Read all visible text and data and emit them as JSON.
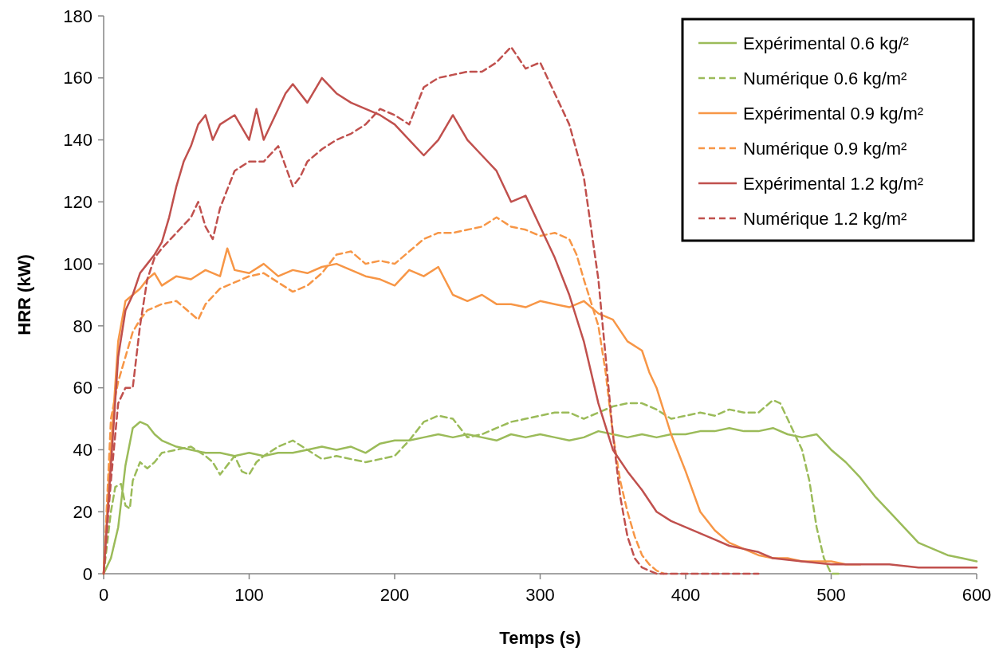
{
  "chart_data": {
    "type": "line",
    "xlabel": "Temps (s)",
    "ylabel": "HRR (kW)",
    "xlim": [
      0,
      600
    ],
    "ylim": [
      0,
      180
    ],
    "xticks": [
      0,
      100,
      200,
      300,
      400,
      500,
      600
    ],
    "yticks": [
      0,
      20,
      40,
      60,
      80,
      100,
      120,
      140,
      160,
      180
    ],
    "grid": false,
    "legend": "top right",
    "marker": "none",
    "series": [
      {
        "name": "Expérimental 0.6 kg/²",
        "color": "#9bbb59",
        "line_style": "solid",
        "x": [
          0,
          5,
          10,
          15,
          20,
          25,
          30,
          35,
          40,
          50,
          60,
          70,
          80,
          90,
          100,
          110,
          120,
          130,
          140,
          150,
          160,
          170,
          180,
          190,
          200,
          210,
          220,
          230,
          240,
          250,
          260,
          270,
          280,
          290,
          300,
          310,
          320,
          330,
          340,
          350,
          360,
          370,
          380,
          390,
          400,
          410,
          420,
          430,
          440,
          450,
          460,
          470,
          480,
          490,
          500,
          510,
          520,
          530,
          540,
          550,
          560,
          570,
          580,
          590,
          600
        ],
        "values": [
          0,
          5,
          15,
          35,
          47,
          49,
          48,
          45,
          43,
          41,
          40,
          39,
          39,
          38,
          39,
          38,
          39,
          39,
          40,
          41,
          40,
          41,
          39,
          42,
          43,
          43,
          44,
          45,
          44,
          45,
          44,
          43,
          45,
          44,
          45,
          44,
          43,
          44,
          46,
          45,
          44,
          45,
          44,
          45,
          45,
          46,
          46,
          47,
          46,
          46,
          47,
          45,
          44,
          45,
          40,
          36,
          31,
          25,
          20,
          15,
          10,
          8,
          6,
          5,
          4
        ]
      },
      {
        "name": "Numérique 0.6 kg/m²",
        "color": "#9bbb59",
        "line_style": "dashed",
        "x": [
          0,
          5,
          8,
          12,
          15,
          18,
          20,
          25,
          30,
          35,
          40,
          50,
          60,
          70,
          75,
          80,
          85,
          90,
          95,
          100,
          105,
          110,
          120,
          130,
          140,
          150,
          160,
          170,
          180,
          190,
          200,
          210,
          220,
          230,
          240,
          250,
          260,
          270,
          280,
          290,
          300,
          310,
          320,
          330,
          340,
          350,
          360,
          370,
          380,
          390,
          400,
          410,
          420,
          430,
          440,
          450,
          460,
          465,
          470,
          480,
          485,
          490,
          495,
          500,
          505
        ],
        "values": [
          0,
          20,
          28,
          29,
          22,
          21,
          30,
          36,
          34,
          36,
          39,
          40,
          41,
          38,
          36,
          32,
          35,
          38,
          33,
          32,
          36,
          38,
          41,
          43,
          40,
          37,
          38,
          37,
          36,
          37,
          38,
          43,
          49,
          51,
          50,
          44,
          45,
          47,
          49,
          50,
          51,
          52,
          52,
          50,
          52,
          54,
          55,
          55,
          53,
          50,
          51,
          52,
          51,
          53,
          52,
          52,
          56,
          55,
          50,
          40,
          30,
          15,
          5,
          0,
          0
        ]
      },
      {
        "name": "Expérimental 0.9 kg/m²",
        "color": "#f79646",
        "line_style": "solid",
        "x": [
          0,
          5,
          10,
          15,
          20,
          25,
          30,
          35,
          40,
          50,
          60,
          70,
          80,
          85,
          90,
          100,
          110,
          120,
          130,
          140,
          150,
          160,
          170,
          180,
          190,
          200,
          210,
          220,
          230,
          240,
          250,
          260,
          270,
          280,
          290,
          300,
          310,
          320,
          330,
          340,
          350,
          360,
          370,
          375,
          380,
          390,
          400,
          410,
          420,
          430,
          440,
          450,
          460,
          470,
          480,
          490,
          500,
          510,
          520
        ],
        "values": [
          0,
          40,
          75,
          88,
          90,
          92,
          95,
          97,
          93,
          96,
          95,
          98,
          96,
          105,
          98,
          97,
          100,
          96,
          98,
          97,
          99,
          100,
          98,
          96,
          95,
          93,
          98,
          96,
          99,
          90,
          88,
          90,
          87,
          87,
          86,
          88,
          87,
          86,
          88,
          84,
          82,
          75,
          72,
          65,
          60,
          45,
          33,
          20,
          14,
          10,
          8,
          6,
          5,
          5,
          4,
          4,
          4,
          3,
          3
        ]
      },
      {
        "name": "Numérique 0.9 kg/m²",
        "color": "#f79646",
        "line_style": "dashed",
        "x": [
          0,
          5,
          10,
          15,
          20,
          25,
          30,
          40,
          50,
          60,
          65,
          70,
          80,
          90,
          100,
          110,
          120,
          130,
          140,
          150,
          160,
          170,
          180,
          190,
          200,
          210,
          220,
          230,
          240,
          250,
          260,
          270,
          280,
          290,
          300,
          310,
          320,
          325,
          330,
          340,
          345,
          350,
          355,
          360,
          365,
          370,
          375,
          380,
          385
        ],
        "values": [
          0,
          50,
          62,
          70,
          78,
          82,
          85,
          87,
          88,
          84,
          82,
          87,
          92,
          94,
          96,
          97,
          94,
          91,
          93,
          97,
          103,
          104,
          100,
          101,
          100,
          104,
          108,
          110,
          110,
          111,
          112,
          115,
          112,
          111,
          109,
          110,
          108,
          103,
          95,
          80,
          65,
          45,
          30,
          20,
          12,
          6,
          3,
          1,
          0
        ]
      },
      {
        "name": "Expérimental 1.2 kg/m²",
        "color": "#c0504d",
        "line_style": "solid",
        "x": [
          0,
          5,
          10,
          15,
          20,
          25,
          30,
          35,
          40,
          45,
          50,
          55,
          60,
          65,
          70,
          75,
          80,
          90,
          100,
          105,
          110,
          120,
          125,
          130,
          140,
          150,
          160,
          170,
          180,
          190,
          200,
          210,
          220,
          230,
          240,
          250,
          260,
          270,
          280,
          290,
          300,
          310,
          320,
          330,
          340,
          350,
          360,
          370,
          380,
          390,
          400,
          410,
          420,
          430,
          440,
          450,
          460,
          480,
          500,
          520,
          540,
          560,
          580,
          600
        ],
        "values": [
          0,
          35,
          70,
          85,
          90,
          97,
          100,
          103,
          107,
          115,
          125,
          133,
          138,
          145,
          148,
          140,
          145,
          148,
          140,
          150,
          140,
          150,
          155,
          158,
          152,
          160,
          155,
          152,
          150,
          148,
          145,
          140,
          135,
          140,
          148,
          140,
          135,
          130,
          120,
          122,
          112,
          102,
          90,
          75,
          55,
          40,
          33,
          27,
          20,
          17,
          15,
          13,
          11,
          9,
          8,
          7,
          5,
          4,
          3,
          3,
          3,
          2,
          2,
          2
        ]
      },
      {
        "name": "Numérique 1.2 kg/m²",
        "color": "#c0504d",
        "line_style": "dashed",
        "x": [
          0,
          5,
          10,
          15,
          20,
          25,
          30,
          35,
          40,
          50,
          60,
          65,
          70,
          75,
          80,
          90,
          100,
          110,
          120,
          130,
          135,
          140,
          150,
          160,
          170,
          180,
          190,
          200,
          210,
          220,
          230,
          240,
          250,
          260,
          270,
          280,
          290,
          300,
          310,
          320,
          330,
          340,
          345,
          350,
          355,
          360,
          365,
          370,
          380,
          400,
          420,
          440,
          450
        ],
        "values": [
          0,
          30,
          55,
          60,
          60,
          80,
          95,
          102,
          105,
          110,
          115,
          120,
          112,
          108,
          118,
          130,
          133,
          133,
          138,
          125,
          128,
          133,
          137,
          140,
          142,
          145,
          150,
          148,
          145,
          157,
          160,
          161,
          162,
          162,
          165,
          170,
          163,
          165,
          155,
          145,
          128,
          95,
          70,
          45,
          25,
          12,
          5,
          2,
          0,
          0,
          0,
          0,
          0
        ]
      }
    ]
  }
}
